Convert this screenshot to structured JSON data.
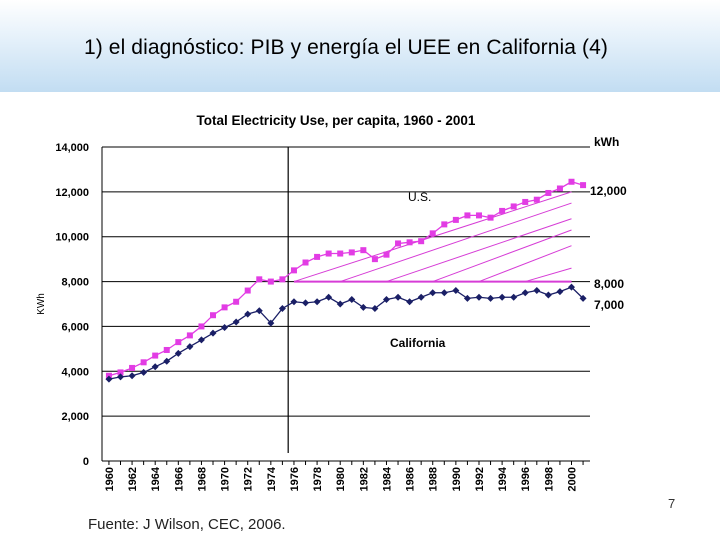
{
  "slide": {
    "title": "1) el diagnóstico: PIB y energía el UEE en California (4)",
    "source": "Fuente: J Wilson, CEC, 2006.",
    "page_number": "7"
  },
  "colors": {
    "us": "#e23ce4",
    "california": "#1a1f66",
    "gap_lines": "#d63cd6",
    "axis": "#000000",
    "header_band": "#c2ddf2"
  },
  "chart_data": {
    "type": "line",
    "title": "Total Electricity Use,  per capita, 1960 - 2001",
    "xlabel": "",
    "ylabel": "KWh",
    "ylim": [
      0,
      14000
    ],
    "yticks": [
      0,
      2000,
      4000,
      6000,
      8000,
      10000,
      12000,
      14000
    ],
    "ytick_labels": [
      "0",
      "2,000",
      "4,000",
      "6,000",
      "8,000",
      "10,000",
      "12,000",
      "14,000"
    ],
    "xticks": [
      "1960",
      "1962",
      "1964",
      "1966",
      "1968",
      "1970",
      "1972",
      "1974",
      "1976",
      "1978",
      "1980",
      "1982",
      "1984",
      "1986",
      "1988",
      "1990",
      "1992",
      "1994",
      "1996",
      "1998",
      "2000"
    ],
    "x": [
      1960,
      1961,
      1962,
      1963,
      1964,
      1965,
      1966,
      1967,
      1968,
      1969,
      1970,
      1971,
      1972,
      1973,
      1974,
      1975,
      1976,
      1977,
      1978,
      1979,
      1980,
      1981,
      1982,
      1983,
      1984,
      1985,
      1986,
      1987,
      1988,
      1989,
      1990,
      1991,
      1992,
      1993,
      1994,
      1995,
      1996,
      1997,
      1998,
      1999,
      2000,
      2001
    ],
    "series": [
      {
        "name": "U.S.",
        "marker": "square",
        "values": [
          3800,
          3950,
          4150,
          4400,
          4700,
          4950,
          5300,
          5600,
          6000,
          6500,
          6850,
          7100,
          7600,
          8100,
          8000,
          8100,
          8500,
          8850,
          9100,
          9250,
          9250,
          9300,
          9400,
          9000,
          9200,
          9700,
          9750,
          9800,
          10150,
          10550,
          10750,
          10950,
          10950,
          10850,
          11150,
          11350,
          11550,
          11650,
          11950,
          12150,
          12450,
          12300
        ]
      },
      {
        "name": "California",
        "marker": "diamond",
        "values": [
          3650,
          3750,
          3800,
          3950,
          4200,
          4450,
          4800,
          5100,
          5400,
          5700,
          5950,
          6200,
          6550,
          6700,
          6150,
          6800,
          7100,
          7050,
          7100,
          7300,
          7000,
          7200,
          6850,
          6800,
          7200,
          7300,
          7100,
          7300,
          7500,
          7500,
          7600,
          7250,
          7300,
          7250,
          7300,
          7300,
          7500,
          7600,
          7400,
          7550,
          7750,
          7250
        ]
      }
    ],
    "vertical_marker": {
      "year": 1975.5
    },
    "reference_line": {
      "value": 8000,
      "from_year": 1976,
      "to_year": 2000
    },
    "gap_diagonals": [
      {
        "start_year": 1976,
        "end_year": 2000,
        "end_value": 12000
      },
      {
        "start_year": 1980,
        "end_year": 2000,
        "end_value": 11500
      },
      {
        "start_year": 1984,
        "end_year": 2000,
        "end_value": 10800
      },
      {
        "start_year": 1988,
        "end_year": 2000,
        "end_value": 10300
      },
      {
        "start_year": 1992,
        "end_year": 2000,
        "end_value": 9600
      },
      {
        "start_year": 1996,
        "end_year": 2000,
        "end_value": 8600
      }
    ],
    "annotations": {
      "unit_label": "kWh",
      "us_label": "U.S.",
      "california_label": "California",
      "right_value_high": "12,000",
      "right_value_mid": "8,000",
      "right_value_low": "7,000"
    }
  }
}
